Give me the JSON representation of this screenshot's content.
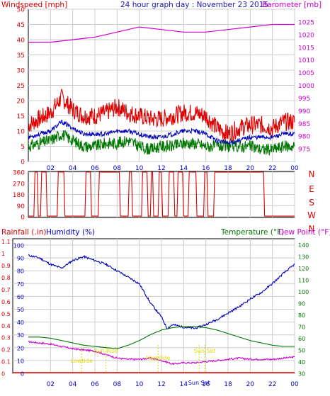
{
  "colors": {
    "wind": "#dd0000",
    "baro": "#cc00cc",
    "dir": "#dd0000",
    "rain": "#dd0000",
    "humidity": "#0000bb",
    "temp": "#007700",
    "dew": "#cc00cc",
    "axis_blue": "#0000cc",
    "axis_green": "#007700",
    "grid": "#cccccc",
    "sun": "#dddd00",
    "title": "#1a1aaa"
  },
  "time_ticks": [
    "02",
    "04",
    "06",
    "08",
    "10",
    "12",
    "14",
    "16",
    "18",
    "20",
    "22",
    "00"
  ],
  "chart_data": [
    {
      "type": "line",
      "id": "wind_baro",
      "title": "24 hour graph day : November 23 2015",
      "ylabel_left": "Windspeed [mph]",
      "ylabel_right": "Barometer [mb]",
      "xlim": [
        0,
        24
      ],
      "ylim_left": [
        0,
        50
      ],
      "ylim_right": [
        970,
        1030
      ],
      "yticks_left": [
        "0",
        "5",
        "10",
        "15",
        "20",
        "25",
        "30",
        "35",
        "40",
        "45",
        "50"
      ],
      "yticks_right": [
        "975",
        "980",
        "985",
        "990",
        "995",
        "1000",
        "1005",
        "1010",
        "1015",
        "1020",
        "1025"
      ],
      "grid": true,
      "series": [
        {
          "name": "Barometer",
          "axis": "right",
          "x": [
            0,
            2,
            4,
            6,
            8,
            10,
            12,
            14,
            16,
            18,
            20,
            22,
            24
          ],
          "values": [
            1017,
            1017,
            1018,
            1019,
            1021,
            1023,
            1022,
            1021,
            1021,
            1022,
            1023,
            1024,
            1024
          ]
        },
        {
          "name": "Wind Gust",
          "axis": "left",
          "x": [
            0,
            1,
            2,
            3,
            4,
            5,
            6,
            7,
            8,
            9,
            10,
            11,
            12,
            13,
            14,
            15,
            16,
            17,
            18,
            19,
            20,
            21,
            22,
            23,
            24
          ],
          "values": [
            12,
            14,
            16,
            21,
            17,
            15,
            15,
            16,
            18,
            16,
            15,
            14,
            14,
            15,
            16,
            16,
            15,
            11,
            9,
            11,
            12,
            12,
            11,
            13,
            13
          ]
        },
        {
          "name": "Wind Average",
          "axis": "left",
          "x": [
            0,
            1,
            2,
            3,
            4,
            5,
            6,
            7,
            8,
            9,
            10,
            11,
            12,
            13,
            14,
            15,
            16,
            17,
            18,
            19,
            20,
            21,
            22,
            23,
            24
          ],
          "values": [
            8,
            9,
            10,
            13,
            11,
            9,
            9,
            9,
            10,
            10,
            9,
            8,
            8,
            9,
            10,
            10,
            9,
            7,
            6,
            7,
            8,
            8,
            8,
            9,
            9
          ]
        },
        {
          "name": "Wind Low",
          "axis": "left",
          "x": [
            0,
            1,
            2,
            3,
            4,
            5,
            6,
            7,
            8,
            9,
            10,
            11,
            12,
            13,
            14,
            15,
            16,
            17,
            18,
            19,
            20,
            21,
            22,
            23,
            24
          ],
          "values": [
            5,
            6,
            7,
            9,
            7,
            5,
            5,
            6,
            6,
            7,
            5,
            4,
            5,
            5,
            6,
            6,
            5,
            5,
            5,
            5,
            5,
            4,
            4,
            5,
            5
          ]
        }
      ]
    },
    {
      "type": "line",
      "id": "direction",
      "ylim": [
        0,
        360
      ],
      "yticks": [
        "0",
        "90",
        "180",
        "270",
        "360"
      ],
      "compass": [
        "N",
        "W",
        "S",
        "E",
        "N"
      ],
      "series": [
        {
          "name": "Wind Direction",
          "x": [
            0,
            0.5,
            0.6,
            0.8,
            0.9,
            1.1,
            1.2,
            1.6,
            1.7,
            2.6,
            2.7,
            3.2,
            3.3,
            5.1,
            5.2,
            5.6,
            5.7,
            6.3,
            6.4,
            8.2,
            8.3,
            9.0,
            9.1,
            9.3,
            9.4,
            10.2,
            10.3,
            10.7,
            10.8,
            11.0,
            11.1,
            11.2,
            11.3,
            11.7,
            11.8,
            12.0,
            12.1,
            12.6,
            12.7,
            13.1,
            13.2,
            13.4,
            13.5,
            13.9,
            14.0,
            14.4,
            14.5,
            15.1,
            15.2,
            15.8,
            15.9,
            16.1,
            16.2,
            16.7,
            16.8,
            21.2,
            21.3,
            21.5,
            21.6,
            24
          ],
          "values": [
            5,
            5,
            360,
            360,
            5,
            5,
            360,
            360,
            5,
            5,
            360,
            360,
            5,
            5,
            360,
            360,
            5,
            5,
            360,
            360,
            5,
            5,
            360,
            360,
            5,
            5,
            360,
            360,
            5,
            5,
            360,
            360,
            5,
            5,
            360,
            360,
            5,
            5,
            360,
            360,
            5,
            5,
            360,
            360,
            5,
            5,
            360,
            360,
            5,
            5,
            360,
            360,
            5,
            5,
            360,
            360,
            5,
            5,
            5,
            5
          ]
        }
      ]
    },
    {
      "type": "line",
      "id": "temp_hum",
      "label_rainfall": "Rainfall (.in)",
      "label_humidity": "Humidity (%)",
      "label_temperature": "Temperature (°F)",
      "label_dewpoint": "Dew Point (°F)",
      "yticks_rain": [
        "0",
        "0.1",
        "0.2",
        "0.3",
        "0.4",
        "0.5",
        "0.6",
        "0.7",
        "0.8",
        "0.9",
        "1",
        "1.1"
      ],
      "yticks_humidity": [
        "0",
        "10",
        "20",
        "30",
        "40",
        "50",
        "60",
        "70",
        "80",
        "90",
        "100"
      ],
      "yticks_temp": [
        "30",
        "40",
        "50",
        "60",
        "70",
        "80",
        "90",
        "100",
        "110",
        "120",
        "130",
        "140"
      ],
      "ylim_humidity": [
        0,
        100
      ],
      "ylim_temp": [
        30,
        145
      ],
      "annotations": [
        "Lowtide",
        "Sun Rise",
        "Hightide",
        "Sun Set",
        "Sun Set"
      ],
      "series": [
        {
          "name": "Humidity",
          "axis": "humidity",
          "x": [
            0,
            1,
            2,
            3,
            4,
            5,
            6,
            7,
            8,
            9,
            10,
            11,
            12,
            12.5,
            13,
            14,
            15,
            16,
            17,
            18,
            19,
            20,
            21,
            22,
            23,
            24
          ],
          "values": [
            92,
            90,
            85,
            82,
            88,
            91,
            88,
            85,
            80,
            75,
            70,
            55,
            44,
            35,
            38,
            36,
            35,
            38,
            42,
            47,
            52,
            58,
            63,
            70,
            78,
            85
          ]
        },
        {
          "name": "Temperature",
          "axis": "temp",
          "x": [
            0,
            1,
            2,
            3,
            4,
            5,
            6,
            7,
            8,
            9,
            10,
            11,
            12,
            13,
            14,
            15,
            16,
            17,
            18,
            19,
            20,
            21,
            22,
            23,
            24
          ],
          "values": [
            61,
            61,
            60,
            58,
            56,
            54,
            53,
            52,
            51,
            54,
            58,
            63,
            67,
            69,
            70,
            70,
            69,
            67,
            64,
            61,
            58,
            56,
            54,
            53,
            53
          ]
        },
        {
          "name": "Dew Point",
          "axis": "temp",
          "x": [
            0,
            1,
            2,
            3,
            4,
            5,
            6,
            7,
            8,
            9,
            10,
            11,
            12,
            13,
            14,
            15,
            16,
            17,
            18,
            19,
            20,
            21,
            22,
            23,
            24
          ],
          "values": [
            57,
            56,
            55,
            53,
            51,
            50,
            49,
            46,
            43,
            42,
            42,
            43,
            41,
            38,
            39,
            39,
            40,
            41,
            42,
            43,
            42,
            42,
            42,
            43,
            44
          ]
        }
      ]
    }
  ]
}
